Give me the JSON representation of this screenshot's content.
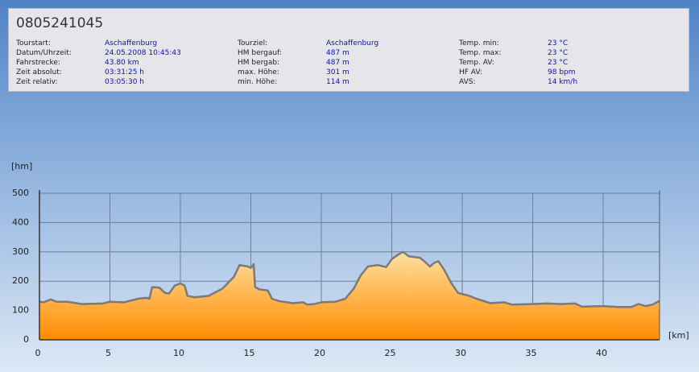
{
  "header": {
    "title": "0805241045",
    "columns": [
      [
        {
          "label": "Tourstart:",
          "value": "Aschaffenburg"
        },
        {
          "label": "Datum/Uhrzeit:",
          "value": "24.05.2008 10:45:43"
        },
        {
          "label": "Fahrstrecke:",
          "value": "43.80 km"
        },
        {
          "label": "Zeit absolut:",
          "value": "03:31:25 h"
        },
        {
          "label": "Zeit relativ:",
          "value": "03:05:30 h"
        }
      ],
      [
        {
          "label": "Tourziel:",
          "value": "Aschaffenburg"
        },
        {
          "label": "HM bergauf:",
          "value": "487 m"
        },
        {
          "label": "HM bergab:",
          "value": "487 m"
        },
        {
          "label": "max. Höhe:",
          "value": "301 m"
        },
        {
          "label": "min. Höhe:",
          "value": "114 m"
        }
      ],
      [
        {
          "label": "Temp. min:",
          "value": "23 °C"
        },
        {
          "label": "Temp. max:",
          "value": "23 °C"
        },
        {
          "label": "Temp. AV:",
          "value": "23 °C"
        },
        {
          "label": "HF AV:",
          "value": "98 bpm"
        },
        {
          "label": "AVS:",
          "value": "14 km/h"
        }
      ]
    ]
  },
  "chart_data": {
    "type": "area",
    "y_label": "[hm]",
    "x_label": "[km]",
    "color": "#ff9a1a",
    "line_color": "#7a7a7a",
    "x": [
      0,
      0.3,
      0.8,
      1.2,
      2,
      3,
      4.5,
      5,
      6,
      7,
      7.6,
      7.8,
      8,
      8.5,
      8.9,
      9.2,
      9.6,
      10,
      10.3,
      10.5,
      11,
      12,
      13,
      13.8,
      14.2,
      14.8,
      15,
      15.2,
      15.3,
      15.6,
      16.2,
      16.5,
      17,
      18,
      18.7,
      19,
      19.5,
      20,
      21,
      21.7,
      22.3,
      22.8,
      23.3,
      24,
      24.6,
      25,
      25.5,
      25.8,
      26.2,
      27,
      27.3,
      27.7,
      28,
      28.3,
      28.7,
      29.2,
      29.7,
      30.5,
      31,
      32,
      33,
      33.5,
      35,
      36,
      37,
      38,
      38.5,
      40,
      41,
      42,
      42.5,
      43,
      43.5,
      44
    ],
    "values": [
      130,
      128,
      138,
      130,
      130,
      122,
      124,
      130,
      128,
      140,
      143,
      140,
      180,
      178,
      160,
      158,
      185,
      192,
      185,
      150,
      145,
      150,
      175,
      215,
      255,
      250,
      245,
      258,
      180,
      172,
      168,
      140,
      132,
      125,
      128,
      120,
      122,
      128,
      130,
      140,
      175,
      220,
      250,
      255,
      248,
      275,
      292,
      300,
      285,
      280,
      268,
      250,
      262,
      268,
      240,
      195,
      160,
      150,
      140,
      125,
      128,
      120,
      122,
      124,
      122,
      124,
      113,
      115,
      112,
      112,
      122,
      115,
      120,
      133
    ],
    "xlim": [
      0,
      44
    ],
    "ylim": [
      0,
      500
    ],
    "xticks": [
      0,
      5,
      10,
      15,
      20,
      25,
      30,
      35,
      40
    ],
    "yticks": [
      0,
      100,
      200,
      300,
      400,
      500
    ],
    "grid": true
  }
}
